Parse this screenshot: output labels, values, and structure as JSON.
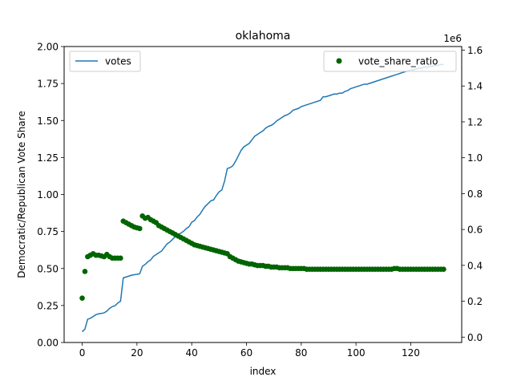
{
  "chart_data": {
    "type": "line",
    "title": "oklahoma",
    "xlabel": "index",
    "ylabel_left": "Democratic/Republican Vote Share",
    "y2_offset_label": "1e6",
    "xlim": [
      -6.6,
      138.6
    ],
    "ylim_left": [
      0.0,
      2.0
    ],
    "ylim_right": [
      -0.03,
      1.62
    ],
    "x_ticks": [
      0,
      20,
      40,
      60,
      80,
      100,
      120
    ],
    "y_ticks_left": [
      0.0,
      0.25,
      0.5,
      0.75,
      1.0,
      1.25,
      1.5,
      1.75,
      2.0
    ],
    "y_tick_labels_left": [
      "0.00",
      "0.25",
      "0.50",
      "0.75",
      "1.00",
      "1.25",
      "1.50",
      "1.75",
      "2.00"
    ],
    "y_ticks_right": [
      0.0,
      0.2,
      0.4,
      0.6,
      0.8,
      1.0,
      1.2,
      1.4,
      1.6
    ],
    "y_tick_labels_right": [
      "0.0",
      "0.2",
      "0.4",
      "0.6",
      "0.8",
      "1.0",
      "1.2",
      "1.4",
      "1.6"
    ],
    "legend_left_position": "upper-left",
    "legend_right_position": "upper-right",
    "grid": false,
    "series": [
      {
        "name": "votes",
        "type": "line",
        "axis": "right",
        "color": "#1f77b4",
        "x": [
          0,
          1,
          2,
          3,
          4,
          5,
          6,
          7,
          8,
          9,
          10,
          11,
          12,
          13,
          14,
          15,
          16,
          17,
          18,
          19,
          20,
          21,
          22,
          23,
          24,
          25,
          26,
          27,
          28,
          29,
          30,
          31,
          32,
          33,
          34,
          35,
          36,
          37,
          38,
          39,
          40,
          41,
          42,
          43,
          44,
          45,
          46,
          47,
          48,
          49,
          50,
          51,
          52,
          53,
          54,
          55,
          56,
          57,
          58,
          59,
          60,
          61,
          62,
          63,
          64,
          65,
          66,
          67,
          68,
          69,
          70,
          71,
          72,
          73,
          74,
          75,
          76,
          77,
          78,
          79,
          80,
          81,
          82,
          83,
          84,
          85,
          86,
          87,
          88,
          89,
          90,
          91,
          92,
          93,
          94,
          95,
          96,
          97,
          98,
          99,
          100,
          101,
          102,
          103,
          104,
          105,
          106,
          107,
          108,
          109,
          110,
          111,
          112,
          113,
          114,
          115,
          116,
          117,
          118,
          119,
          120,
          121,
          122,
          123,
          124,
          125,
          126,
          127,
          128,
          129,
          130,
          131,
          132
        ],
        "y": [
          0.03,
          0.045,
          0.1,
          0.105,
          0.115,
          0.125,
          0.13,
          0.132,
          0.135,
          0.145,
          0.16,
          0.17,
          0.175,
          0.19,
          0.2,
          0.33,
          0.335,
          0.34,
          0.345,
          0.348,
          0.35,
          0.353,
          0.395,
          0.405,
          0.42,
          0.43,
          0.45,
          0.46,
          0.47,
          0.48,
          0.5,
          0.52,
          0.53,
          0.545,
          0.56,
          0.57,
          0.58,
          0.59,
          0.605,
          0.615,
          0.64,
          0.65,
          0.67,
          0.685,
          0.71,
          0.73,
          0.745,
          0.76,
          0.765,
          0.79,
          0.81,
          0.82,
          0.87,
          0.94,
          0.945,
          0.955,
          0.98,
          1.01,
          1.04,
          1.06,
          1.07,
          1.08,
          1.1,
          1.12,
          1.13,
          1.14,
          1.15,
          1.165,
          1.175,
          1.18,
          1.19,
          1.205,
          1.215,
          1.225,
          1.235,
          1.24,
          1.25,
          1.265,
          1.27,
          1.275,
          1.285,
          1.29,
          1.295,
          1.3,
          1.305,
          1.31,
          1.315,
          1.32,
          1.34,
          1.34,
          1.345,
          1.35,
          1.355,
          1.355,
          1.36,
          1.36,
          1.37,
          1.375,
          1.385,
          1.39,
          1.395,
          1.4,
          1.405,
          1.41,
          1.41,
          1.415,
          1.42,
          1.425,
          1.43,
          1.435,
          1.44,
          1.445,
          1.45,
          1.455,
          1.46,
          1.465,
          1.47,
          1.475,
          1.48,
          1.485,
          1.49,
          1.49,
          1.495,
          1.5,
          1.5,
          1.505,
          1.505,
          1.51,
          1.51,
          1.515,
          1.515,
          1.52,
          1.52
        ]
      },
      {
        "name": "vote_share_ratio",
        "type": "scatter",
        "axis": "left",
        "color": "#006400",
        "x": [
          0,
          1,
          2,
          3,
          4,
          5,
          6,
          7,
          8,
          9,
          10,
          11,
          12,
          13,
          14,
          15,
          16,
          17,
          18,
          19,
          20,
          21,
          22,
          23,
          24,
          25,
          26,
          27,
          28,
          29,
          30,
          31,
          32,
          33,
          34,
          35,
          36,
          37,
          38,
          39,
          40,
          41,
          42,
          43,
          44,
          45,
          46,
          47,
          48,
          49,
          50,
          51,
          52,
          53,
          54,
          55,
          56,
          57,
          58,
          59,
          60,
          61,
          62,
          63,
          64,
          65,
          66,
          67,
          68,
          69,
          70,
          71,
          72,
          73,
          74,
          75,
          76,
          77,
          78,
          79,
          80,
          81,
          82,
          83,
          84,
          85,
          86,
          87,
          88,
          89,
          90,
          91,
          92,
          93,
          94,
          95,
          96,
          97,
          98,
          99,
          100,
          101,
          102,
          103,
          104,
          105,
          106,
          107,
          108,
          109,
          110,
          111,
          112,
          113,
          114,
          115,
          116,
          117,
          118,
          119,
          120,
          121,
          122,
          123,
          124,
          125,
          126,
          127,
          128,
          129,
          130,
          131,
          132
        ],
        "y": [
          0.3,
          0.48,
          0.58,
          0.59,
          0.6,
          0.59,
          0.59,
          0.585,
          0.58,
          0.595,
          0.58,
          0.57,
          0.57,
          0.57,
          0.57,
          0.82,
          0.81,
          0.8,
          0.79,
          0.78,
          0.775,
          0.77,
          0.855,
          0.84,
          0.845,
          0.83,
          0.82,
          0.81,
          0.79,
          0.78,
          0.77,
          0.76,
          0.75,
          0.74,
          0.73,
          0.72,
          0.71,
          0.7,
          0.69,
          0.68,
          0.67,
          0.66,
          0.655,
          0.65,
          0.645,
          0.64,
          0.635,
          0.63,
          0.625,
          0.62,
          0.615,
          0.61,
          0.605,
          0.6,
          0.58,
          0.57,
          0.56,
          0.55,
          0.545,
          0.54,
          0.535,
          0.53,
          0.53,
          0.525,
          0.52,
          0.52,
          0.52,
          0.515,
          0.515,
          0.51,
          0.51,
          0.51,
          0.505,
          0.505,
          0.505,
          0.505,
          0.5,
          0.5,
          0.5,
          0.5,
          0.5,
          0.5,
          0.495,
          0.495,
          0.495,
          0.495,
          0.495,
          0.495,
          0.495,
          0.495,
          0.495,
          0.495,
          0.495,
          0.495,
          0.495,
          0.495,
          0.495,
          0.495,
          0.495,
          0.495,
          0.495,
          0.495,
          0.495,
          0.495,
          0.495,
          0.495,
          0.495,
          0.495,
          0.495,
          0.495,
          0.495,
          0.495,
          0.495,
          0.495,
          0.5,
          0.5,
          0.495,
          0.495,
          0.495,
          0.495,
          0.495,
          0.495,
          0.495,
          0.495,
          0.495,
          0.495,
          0.495,
          0.495,
          0.495,
          0.495,
          0.495,
          0.495,
          0.495
        ]
      }
    ]
  }
}
